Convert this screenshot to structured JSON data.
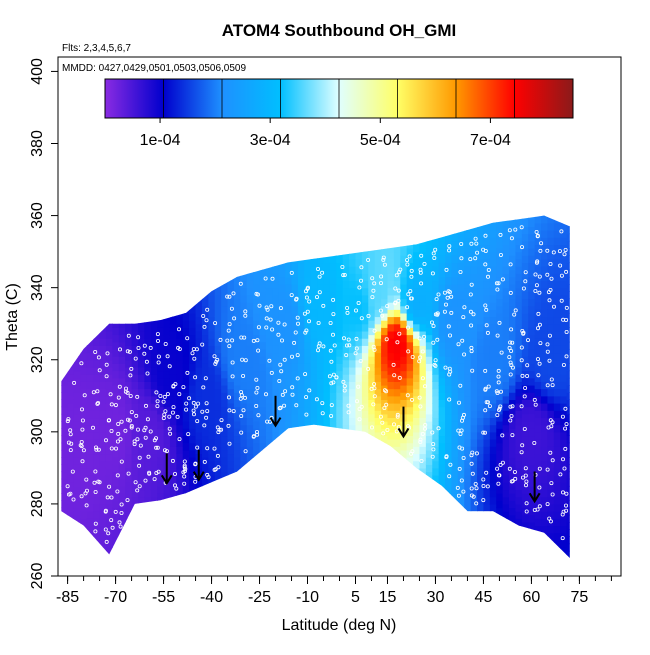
{
  "chart_data": {
    "type": "heatmap",
    "title": "ATOM4 Southbound OH_GMI",
    "note_flights": "Flts: 2,3,4,5,6,7",
    "note_dates": "MMDD: 0427,0429,0501,0503,0506,0509",
    "xlabel": "Latitude (deg N)",
    "ylabel": "Theta (C)",
    "xlim": [
      -88,
      88
    ],
    "ylim": [
      260,
      404
    ],
    "x_ticks": [
      -85,
      -70,
      -55,
      -40,
      -25,
      -10,
      5,
      15,
      30,
      45,
      60,
      75
    ],
    "x_tick_labels": [
      "-85",
      "-70",
      "-55",
      "-40",
      "-25",
      "-10",
      "5",
      "15",
      "30",
      "45",
      "60",
      "75"
    ],
    "y_ticks": [
      260,
      280,
      300,
      320,
      340,
      360,
      380,
      400
    ],
    "y_tick_labels": [
      "260",
      "280",
      "300",
      "320",
      "340",
      "360",
      "380",
      "400"
    ],
    "colorbar": {
      "min": 0,
      "max": 0.00085,
      "tick_values": [
        0.0001,
        0.0003,
        0.0005,
        0.0007
      ],
      "tick_labels": [
        "1e-04",
        "3e-04",
        "5e-04",
        "7e-04"
      ],
      "colors": [
        "#8a2be2",
        "#0000cd",
        "#1e90ff",
        "#00bfff",
        "#e0ffff",
        "#ffff66",
        "#ff9900",
        "#ff0000",
        "#8b1a1a"
      ]
    },
    "field": {
      "lat": [
        -87,
        -80,
        -72,
        -64,
        -56,
        -48,
        -40,
        -32,
        -24,
        -16,
        -8,
        0,
        8,
        16,
        24,
        32,
        40,
        48,
        56,
        64,
        72
      ],
      "upper_theta": [
        314,
        323,
        330,
        330,
        331,
        333,
        339,
        343,
        345,
        347,
        348,
        349,
        350,
        351,
        352,
        354,
        356,
        358,
        359,
        360,
        357
      ],
      "lower_theta": [
        278,
        274,
        266,
        280,
        281,
        283,
        286,
        289,
        295,
        301,
        302,
        301,
        300,
        296,
        290,
        285,
        278,
        278,
        274,
        272,
        265
      ],
      "cells": [
        {
          "lat": -82,
          "theta": 295,
          "value": 2e-05
        },
        {
          "lat": -70,
          "theta": 300,
          "value": 2e-05
        },
        {
          "lat": -60,
          "theta": 300,
          "value": 4e-05
        },
        {
          "lat": -52,
          "theta": 315,
          "value": 0.0001
        },
        {
          "lat": -42,
          "theta": 310,
          "value": 0.00014
        },
        {
          "lat": -30,
          "theta": 320,
          "value": 0.0002
        },
        {
          "lat": -18,
          "theta": 330,
          "value": 0.00022
        },
        {
          "lat": -6,
          "theta": 335,
          "value": 0.0003
        },
        {
          "lat": 6,
          "theta": 335,
          "value": 0.00032
        },
        {
          "lat": 12,
          "theta": 338,
          "value": 0.00036
        },
        {
          "lat": 18,
          "theta": 325,
          "value": 0.00075
        },
        {
          "lat": 24,
          "theta": 335,
          "value": 0.00028
        },
        {
          "lat": 36,
          "theta": 330,
          "value": 0.00022
        },
        {
          "lat": 48,
          "theta": 320,
          "value": 0.0002
        },
        {
          "lat": 60,
          "theta": 300,
          "value": 6e-05
        },
        {
          "lat": 66,
          "theta": 320,
          "value": 0.00016
        }
      ]
    },
    "arrows": [
      {
        "lat": -54,
        "theta": 286
      },
      {
        "lat": -44,
        "theta": 287
      },
      {
        "lat": -20,
        "theta": 302
      },
      {
        "lat": 20,
        "theta": 299
      },
      {
        "lat": 61,
        "theta": 281
      }
    ]
  }
}
